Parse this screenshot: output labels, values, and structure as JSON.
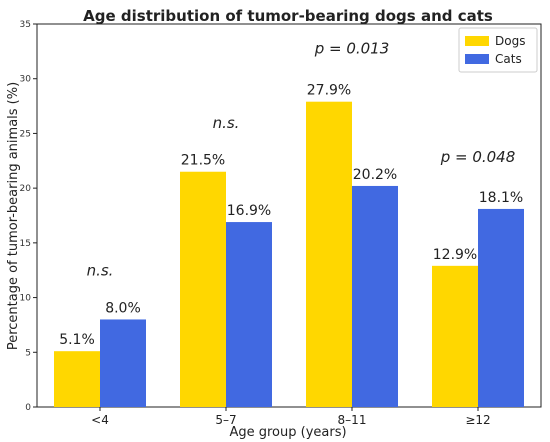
{
  "chart_data": {
    "type": "bar",
    "title": "Age distribution of tumor-bearing dogs and cats",
    "xlabel": "Age group (years)",
    "ylabel": "Percentage of tumor-bearing animals (%)",
    "categories": [
      "<4",
      "5–7",
      "8–11",
      "≥12"
    ],
    "ylim": [
      0,
      35
    ],
    "yticks": [
      0,
      5,
      10,
      15,
      20,
      25,
      30,
      35
    ],
    "series": [
      {
        "name": "Dogs",
        "color": "#FFD700",
        "values": [
          5.1,
          21.5,
          27.9,
          12.9
        ],
        "labels": [
          "5.1%",
          "21.5%",
          "27.9%",
          "12.9%"
        ]
      },
      {
        "name": "Cats",
        "color": "#4169E1",
        "values": [
          8.0,
          16.9,
          20.2,
          18.1
        ],
        "labels": [
          "8.0%",
          "16.9%",
          "20.2%",
          "18.1%"
        ]
      }
    ],
    "annotations": [
      {
        "text": "n.s.",
        "category": 0,
        "y": 12
      },
      {
        "text": "n.s.",
        "category": 1,
        "y": 25.5
      },
      {
        "text": "p = 0.013",
        "category": 2,
        "y": 32.3
      },
      {
        "text": "p = 0.048",
        "category": 3,
        "y": 22.4
      }
    ],
    "legend_position": "top-right",
    "grid": false
  }
}
